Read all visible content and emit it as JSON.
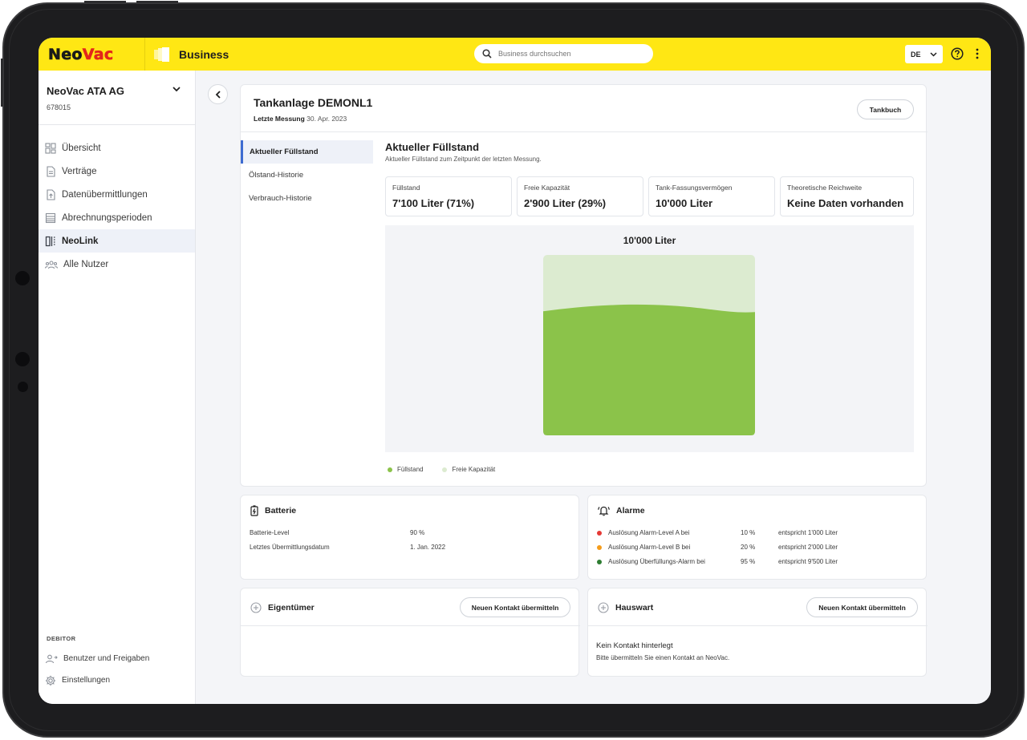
{
  "app": {
    "brand_neo": "Neo",
    "brand_vac": "Vac",
    "product": "Business",
    "search_placeholder": "Business durchsuchen",
    "language": "DE"
  },
  "sidebar": {
    "org_name": "NeoVac ATA AG",
    "org_id": "678015",
    "items": [
      {
        "label": "Übersicht",
        "icon": "grid-icon"
      },
      {
        "label": "Verträge",
        "icon": "document-icon"
      },
      {
        "label": "Datenübermittlungen",
        "icon": "upload-document-icon"
      },
      {
        "label": "Abrechnungsperioden",
        "icon": "table-icon"
      },
      {
        "label": "NeoLink",
        "icon": "neolink-icon",
        "active": true
      },
      {
        "label": "Alle Nutzer",
        "icon": "users-icon"
      }
    ],
    "section_label": "DEBITOR",
    "bottom_items": [
      {
        "label": "Benutzer und Freigaben",
        "icon": "user-share-icon"
      },
      {
        "label": "Einstellungen",
        "icon": "gear-icon"
      }
    ]
  },
  "tank": {
    "title": "Tankanlage DEMONL1",
    "last_measure_label": "Letzte Messung",
    "last_measure_value": "30. Apr. 2023",
    "tankbuch_label": "Tankbuch",
    "tabs": [
      "Aktueller Füllstand",
      "Ölstand-Historie",
      "Verbrauch-Historie"
    ],
    "section_title": "Aktueller Füllstand",
    "section_subtitle": "Aktueller Füllstand zum Zeitpunkt der letzten Messung.",
    "kpis": [
      {
        "label": "Füllstand",
        "value": "7'100 Liter (71%)"
      },
      {
        "label": "Freie Kapazität",
        "value": "2'900 Liter (29%)"
      },
      {
        "label": "Tank-Fassungsvermögen",
        "value": "10'000 Liter"
      },
      {
        "label": "Theoretische Reichweite",
        "value": "Keine Daten vorhanden"
      }
    ],
    "fill_fraction": 0.71,
    "colors": {
      "fill": "#8bc34a",
      "free": "#dcebd0"
    }
  },
  "chart_data": {
    "type": "area",
    "title": "10'000 Liter",
    "capacity": 10000,
    "series": [
      {
        "name": "Füllstand",
        "values": [
          7100
        ]
      },
      {
        "name": "Freie Kapazität",
        "values": [
          2900
        ]
      }
    ]
  },
  "battery": {
    "title": "Batterie",
    "rows": [
      {
        "label": "Batterie-Level",
        "value": "90 %"
      },
      {
        "label": "Letztes Übermittlungsdatum",
        "value": "1. Jan. 2022"
      }
    ]
  },
  "alarms": {
    "title": "Alarme",
    "rows": [
      {
        "label": "Auslösung Alarm-Level A bei",
        "pct": "10 %",
        "eq": "entspricht 1'000 Liter",
        "color": "#e53935"
      },
      {
        "label": "Auslösung Alarm-Level B bei",
        "pct": "20 %",
        "eq": "entspricht 2'000 Liter",
        "color": "#f59c1a"
      },
      {
        "label": "Auslösung Überfüllungs-Alarm bei",
        "pct": "95 %",
        "eq": "entspricht 9'500 Liter",
        "color": "#2e7d32"
      }
    ]
  },
  "owner": {
    "title": "Eigentümer",
    "button": "Neuen Kontakt übermitteln"
  },
  "caretaker": {
    "title": "Hauswart",
    "button": "Neuen Kontakt übermitteln",
    "empty_title": "Kein Kontakt hinterlegt",
    "empty_text": "Bitte übermitteln Sie einen Kontakt an NeoVac."
  }
}
